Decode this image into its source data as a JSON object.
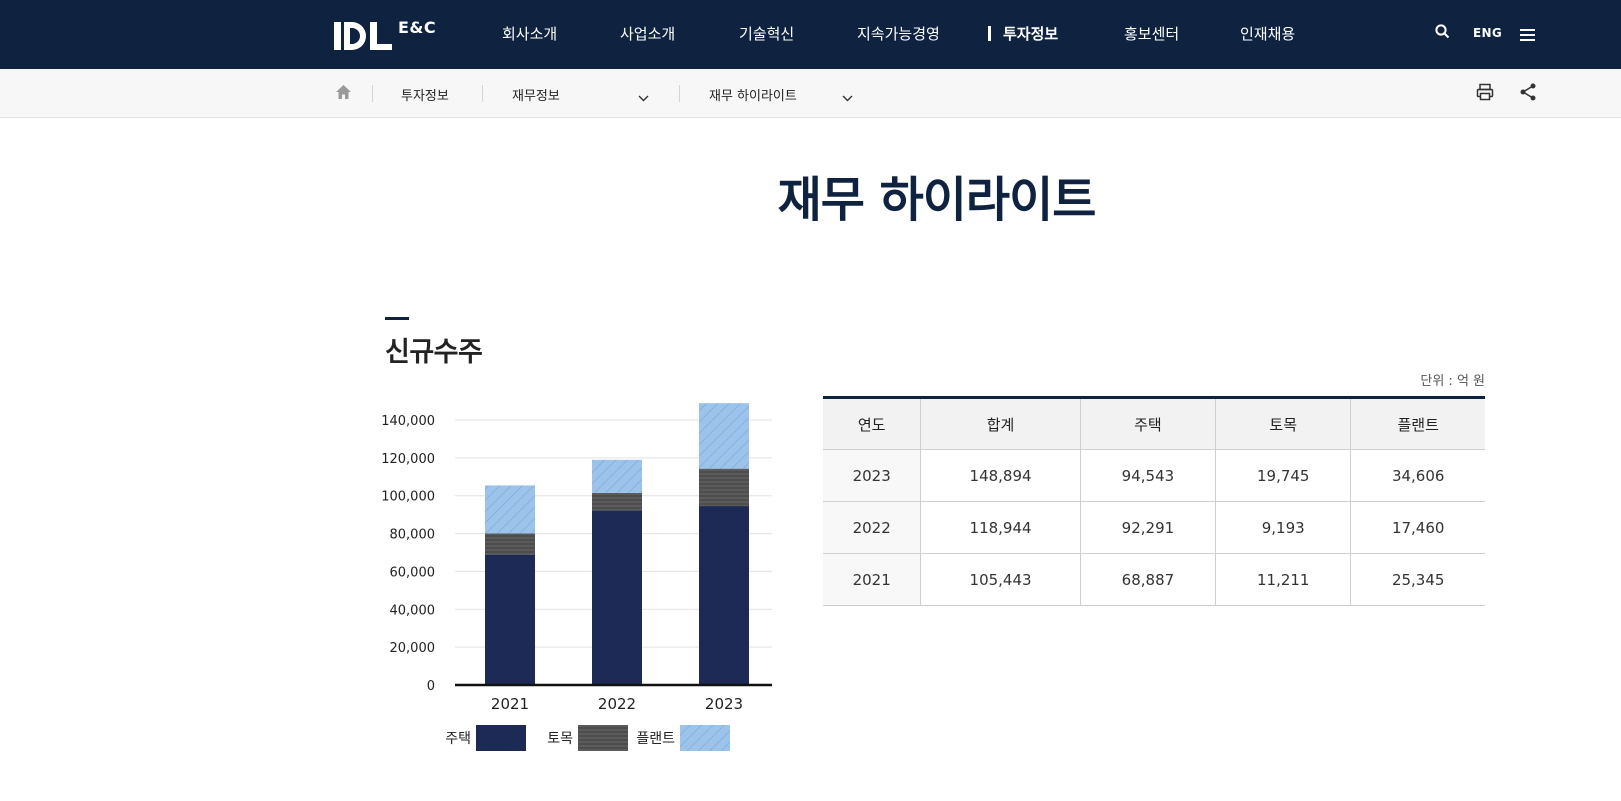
{
  "header": {
    "logo_text": "E&C",
    "nav": [
      "회사소개",
      "사업소개",
      "기술혁신",
      "지속가능경영",
      "투자정보",
      "홍보센터",
      "인재채용"
    ],
    "active_nav": "투자정보",
    "lang_label": "ENG",
    "icons": [
      "search-icon",
      "menu-icon"
    ]
  },
  "breadcrumb": {
    "level1": "투자정보",
    "level2": "재무정보",
    "level3": "재무 하이라이트",
    "icons": [
      "home-icon",
      "print-icon",
      "share-icon"
    ]
  },
  "page": {
    "title": "재무 하이라이트"
  },
  "section": {
    "title": "신규수주",
    "unit": "단위 : 억 원"
  },
  "chart_data": {
    "type": "bar",
    "stacked": true,
    "categories": [
      "2021",
      "2022",
      "2023"
    ],
    "series": [
      {
        "name": "주택",
        "values": [
          68887,
          92291,
          94543
        ],
        "color": "#1c2a55",
        "pattern": "solid"
      },
      {
        "name": "토목",
        "values": [
          11211,
          9193,
          19745
        ],
        "color": "#5b5b5b",
        "pattern": "horizontal-lines"
      },
      {
        "name": "플랜트",
        "values": [
          25345,
          17460,
          34606
        ],
        "color": "#9cc3ea",
        "pattern": "diagonal-lines"
      }
    ],
    "ylim": [
      0,
      140000
    ],
    "yticks": [
      0,
      20000,
      40000,
      60000,
      80000,
      100000,
      120000,
      140000
    ],
    "ytick_labels": [
      "0",
      "20,000",
      "40,000",
      "60,000",
      "80,000",
      "100,000",
      "120,000",
      "140,000"
    ],
    "grid": true,
    "legend_position": "bottom"
  },
  "table": {
    "headers": [
      "연도",
      "합계",
      "주택",
      "토목",
      "플랜트"
    ],
    "rows": [
      [
        "2023",
        "148,894",
        "94,543",
        "19,745",
        "34,606"
      ],
      [
        "2022",
        "118,944",
        "92,291",
        "9,193",
        "17,460"
      ],
      [
        "2021",
        "105,443",
        "68,887",
        "11,211",
        "25,345"
      ]
    ]
  }
}
